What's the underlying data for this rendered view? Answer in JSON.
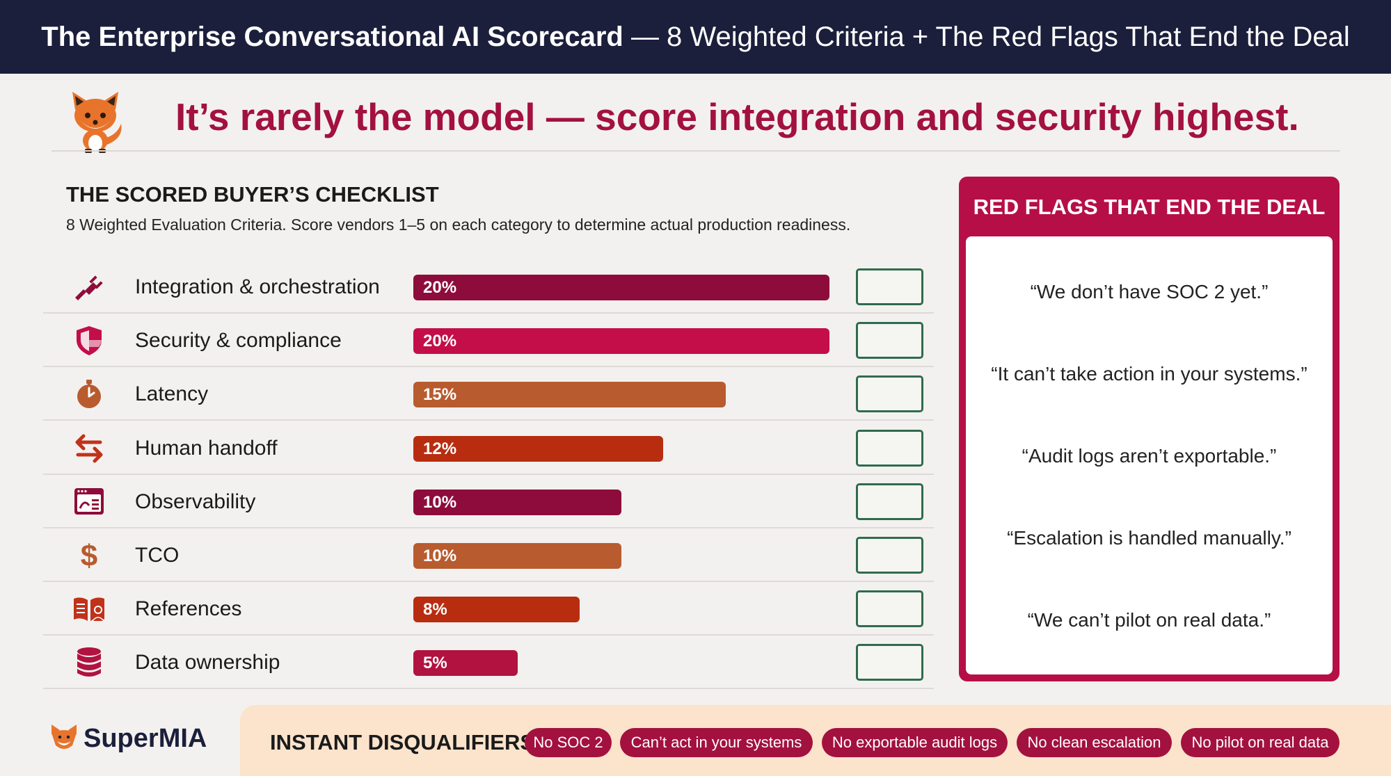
{
  "header": {
    "title_bold": "The Enterprise Conversational AI Scorecard",
    "title_rest": " — 8 Weighted Criteria + The Red Flags That End the Deal"
  },
  "headline": "It’s rarely the model — score integration and security highest.",
  "checklist": {
    "title": "THE SCORED BUYER’S CHECKLIST",
    "subtitle": "8 Weighted Evaluation Criteria. Score vendors 1–5 on each category to determine actual production readiness."
  },
  "chart_data": {
    "type": "bar",
    "orientation": "horizontal",
    "categories": [
      "Integration & orchestration",
      "Security & compliance",
      "Latency",
      "Human handoff",
      "Observability",
      "TCO",
      "References",
      "Data ownership"
    ],
    "values": [
      20,
      20,
      15,
      12,
      10,
      10,
      8,
      5
    ],
    "value_labels": [
      "20%",
      "20%",
      "15%",
      "12%",
      "10%",
      "10%",
      "8%",
      "5%"
    ],
    "unit": "%",
    "colors": [
      "#8e0c3b",
      "#c30e4a",
      "#b85b2f",
      "#b82d10",
      "#8e0c3b",
      "#b85b2f",
      "#b82d10",
      "#b1123f"
    ],
    "icons": [
      "plug-icon",
      "shield-icon",
      "stopwatch-icon",
      "swap-arrows-icon",
      "dashboard-icon",
      "dollar-icon",
      "book-user-icon",
      "database-icon"
    ],
    "xlim": [
      0,
      20
    ],
    "grid": false
  },
  "red_flags": {
    "title": "RED FLAGS THAT END THE DEAL",
    "items": [
      "“We don’t have SOC 2 yet.”",
      "“It can’t take action in your systems.”",
      "“Audit logs aren’t exportable.”",
      "“Escalation is handled manually.”",
      "“We can’t pilot on real data.”"
    ]
  },
  "footer": {
    "logo_text": "SuperMIA",
    "disqualifiers_title": "INSTANT DISQUALIFIERS",
    "pills": [
      "No SOC 2",
      "Can’t act in your systems",
      "No exportable audit logs",
      "No clean escalation",
      "No pilot on real data"
    ]
  },
  "colors": {
    "navy": "#1b1f3b",
    "crimson": "#a3113f",
    "panel_red": "#b60f47",
    "box_green": "#2f6b4c",
    "footer_peach": "#fbe3cc"
  }
}
